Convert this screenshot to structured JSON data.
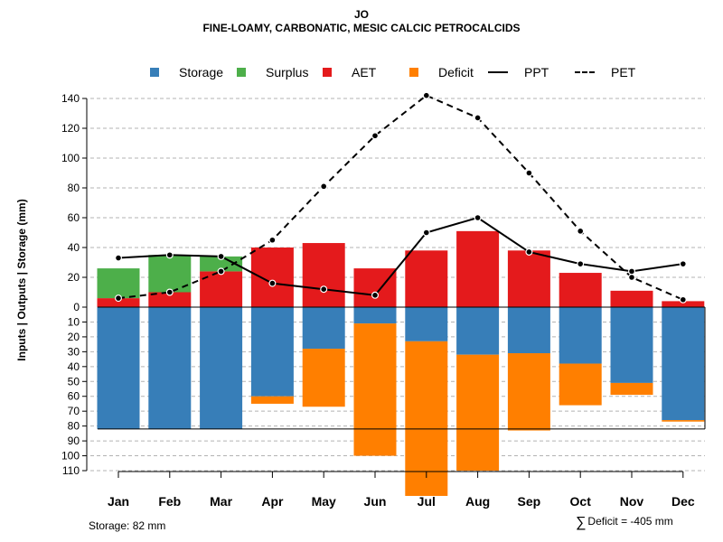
{
  "header": {
    "title": "JO",
    "subtitle": "FINE-LOAMY, CARBONATIC, MESIC CALCIC PETROCALCIDS"
  },
  "legend": [
    {
      "label": "Storage",
      "kind": "box",
      "color": "#377eb8"
    },
    {
      "label": "Surplus",
      "kind": "box",
      "color": "#4daf4a"
    },
    {
      "label": "AET",
      "kind": "box",
      "color": "#e41a1c"
    },
    {
      "label": "Deficit",
      "kind": "box",
      "color": "#ff7f00"
    },
    {
      "label": "PPT",
      "kind": "line",
      "color": "#000000"
    },
    {
      "label": "PET",
      "kind": "dash",
      "color": "#000000"
    }
  ],
  "footer": {
    "storage": "Storage: 82 mm",
    "deficit_symbol": "∑",
    "deficit": "Deficit = -405 mm"
  },
  "chart_data": {
    "type": "bar",
    "title": "JO",
    "subtitle": "FINE-LOAMY, CARBONATIC, MESIC CALCIC PETROCALCIDS",
    "ylabel": "Inputs | Outputs | Storage    (mm)",
    "categories": [
      "Jan",
      "Feb",
      "Mar",
      "Apr",
      "May",
      "Jun",
      "Jul",
      "Aug",
      "Sep",
      "Oct",
      "Nov",
      "Dec"
    ],
    "upper_axis": {
      "ylim": [
        0,
        145
      ],
      "ticks": [
        0,
        20,
        40,
        60,
        80,
        100,
        120,
        140
      ]
    },
    "lower_axis": {
      "ylim": [
        0,
        110
      ],
      "ticks": [
        0,
        10,
        20,
        30,
        40,
        50,
        60,
        70,
        80,
        90,
        100,
        110
      ]
    },
    "storage_capacity": 82,
    "series": [
      {
        "name": "AET",
        "color": "#e41a1c",
        "values": [
          6,
          10,
          24,
          40,
          43,
          26,
          38,
          51,
          38,
          23,
          11,
          4
        ]
      },
      {
        "name": "Surplus",
        "color": "#4daf4a",
        "values": [
          20,
          25,
          10,
          0,
          0,
          0,
          0,
          0,
          0,
          0,
          0,
          0
        ]
      },
      {
        "name": "Storage",
        "color": "#377eb8",
        "values": [
          82,
          82,
          82,
          60,
          28,
          11,
          23,
          32,
          31,
          38,
          51,
          76
        ]
      },
      {
        "name": "Deficit",
        "color": "#ff7f00",
        "values": [
          0,
          0,
          0,
          5,
          39,
          89,
          104,
          78,
          52,
          28,
          8,
          1
        ]
      },
      {
        "name": "PPT",
        "color": "#000000",
        "style": "solid",
        "values": [
          33,
          35,
          34,
          16,
          12,
          8,
          50,
          60,
          37,
          29,
          24,
          29
        ]
      },
      {
        "name": "PET",
        "color": "#000000",
        "style": "dashed",
        "values": [
          6,
          10,
          24,
          45,
          81,
          115,
          142,
          127,
          90,
          51,
          20,
          5
        ]
      }
    ]
  }
}
